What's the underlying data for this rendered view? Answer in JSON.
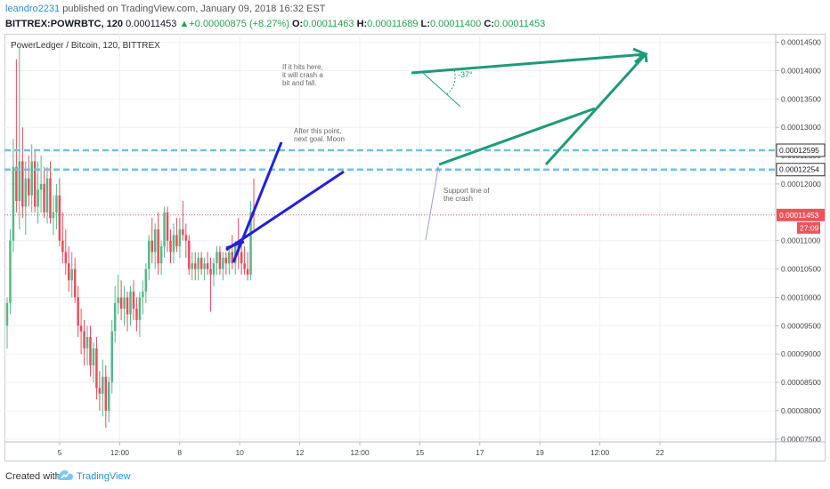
{
  "header": {
    "author": "leandro2231",
    "published_text": " published on TradingView.com, January 09, 2018 16:32 EST",
    "symbol": "BITTREX:POWRBTC, 120",
    "last": "0.00011453",
    "change_arrow": "▲",
    "change": "+0.00000875 (+8.27%)",
    "open_label": "O:",
    "open": "0.00011463",
    "high_label": "H:",
    "high": "0.00011689",
    "low_label": "L:",
    "low": "0.00011400",
    "close_label": "C:",
    "close": "0.00011453"
  },
  "footer": {
    "created_with": "Created with",
    "brand": "TradingView"
  },
  "chart_data": {
    "type": "candlestick",
    "title": "PowerLedger / Bitcoin, 120, BITTREX",
    "y_ticks": [
      "0.00014500",
      "0.00014000",
      "0.00013500",
      "0.00013000",
      "0.00012500",
      "0.00012000",
      "0.00011500",
      "0.00011000",
      "0.00010500",
      "0.00010000",
      "0.00009500",
      "0.00009000",
      "0.00008500",
      "0.00008000",
      "0.00007500"
    ],
    "ylim": [
      7.45e-05,
      0.0001465
    ],
    "x_ticks": [
      "5",
      "12:00",
      "8",
      "10",
      "12",
      "12:00",
      "15",
      "17",
      "19",
      "12:00",
      "22"
    ],
    "grid": true,
    "price_markers": [
      {
        "label": "0.00012595",
        "value": 0.00012595,
        "color": "#6cc4de",
        "dashed": true
      },
      {
        "label": "0.00012254",
        "value": 0.00012254,
        "color": "#6cc4de",
        "dashed": true
      },
      {
        "label": "0.00011453",
        "value": 0.00011453,
        "color": "#e8555a",
        "dashed": false,
        "countdown": "27:09"
      }
    ],
    "annotations": [
      {
        "text": "If it hits here, it will crash a bit and fall."
      },
      {
        "text": "After this point, next goal. Moon"
      },
      {
        "text": "Support line of the crash"
      },
      {
        "text": "-37°"
      }
    ],
    "colors": {
      "up": "#53b987",
      "down": "#eb4d5c",
      "trend_blue": "#2020d8",
      "trend_green": "#1e9a7a"
    },
    "candles": [
      {
        "o": 9.5e-05,
        "h": 0.0001,
        "l": 9.1e-05,
        "c": 9.9e-05
      },
      {
        "o": 9.9e-05,
        "h": 0.000112,
        "l": 9.7e-05,
        "c": 0.00011
      },
      {
        "o": 0.00011,
        "h": 0.000128,
        "l": 0.000108,
        "c": 0.000123
      },
      {
        "o": 0.000123,
        "h": 0.000142,
        "l": 0.000115,
        "c": 0.000117
      },
      {
        "o": 0.000117,
        "h": 0.000144,
        "l": 0.000112,
        "c": 0.000124
      },
      {
        "o": 0.000124,
        "h": 0.00013,
        "l": 0.000114,
        "c": 0.000116
      },
      {
        "o": 0.000116,
        "h": 0.000124,
        "l": 0.000111,
        "c": 0.000121
      },
      {
        "o": 0.000121,
        "h": 0.000125,
        "l": 0.000116,
        "c": 0.000118
      },
      {
        "o": 0.000118,
        "h": 0.000127,
        "l": 0.000115,
        "c": 0.000124
      },
      {
        "o": 0.000124,
        "h": 0.000126,
        "l": 0.000115,
        "c": 0.000116
      },
      {
        "o": 0.000116,
        "h": 0.000124,
        "l": 0.000113,
        "c": 0.000119
      },
      {
        "o": 0.000119,
        "h": 0.000125,
        "l": 0.000115,
        "c": 0.00012
      },
      {
        "o": 0.00012,
        "h": 0.000123,
        "l": 0.000114,
        "c": 0.000115
      },
      {
        "o": 0.000115,
        "h": 0.000123,
        "l": 0.000113,
        "c": 0.000121
      },
      {
        "o": 0.000121,
        "h": 0.000124,
        "l": 0.000113,
        "c": 0.000114
      },
      {
        "o": 0.000114,
        "h": 0.000118,
        "l": 0.000111,
        "c": 0.000115
      },
      {
        "o": 0.000115,
        "h": 0.00012,
        "l": 0.000112,
        "c": 0.000118
      },
      {
        "o": 0.000118,
        "h": 0.000121,
        "l": 0.000109,
        "c": 0.00011
      },
      {
        "o": 0.00011,
        "h": 0.000115,
        "l": 0.000106,
        "c": 0.000108
      },
      {
        "o": 0.000108,
        "h": 0.000112,
        "l": 0.000104,
        "c": 0.000106
      },
      {
        "o": 0.000106,
        "h": 0.000109,
        "l": 0.000101,
        "c": 0.000103
      },
      {
        "o": 0.000103,
        "h": 0.000108,
        "l": 0.0001,
        "c": 0.000105
      },
      {
        "o": 0.000105,
        "h": 0.000107,
        "l": 9.9e-05,
        "c": 0.0001
      },
      {
        "o": 0.0001,
        "h": 0.000102,
        "l": 9.3e-05,
        "c": 9.5e-05
      },
      {
        "o": 9.5e-05,
        "h": 9.8e-05,
        "l": 9e-05,
        "c": 9.4e-05
      },
      {
        "o": 9.4e-05,
        "h": 9.6e-05,
        "l": 8.8e-05,
        "c": 9.1e-05
      },
      {
        "o": 9.1e-05,
        "h": 9.5e-05,
        "l": 8.8e-05,
        "c": 9.3e-05
      },
      {
        "o": 9.3e-05,
        "h": 9.5e-05,
        "l": 8.6e-05,
        "c": 8.8e-05
      },
      {
        "o": 8.8e-05,
        "h": 9.2e-05,
        "l": 8.5e-05,
        "c": 9.1e-05
      },
      {
        "o": 9.1e-05,
        "h": 9.3e-05,
        "l": 8.2e-05,
        "c": 8.4e-05
      },
      {
        "o": 8.4e-05,
        "h": 8.7e-05,
        "l": 8e-05,
        "c": 8.3e-05
      },
      {
        "o": 8.3e-05,
        "h": 8.9e-05,
        "l": 7.9e-05,
        "c": 8.6e-05
      },
      {
        "o": 8.6e-05,
        "h": 8.8e-05,
        "l": 7.7e-05,
        "c": 8e-05
      },
      {
        "o": 8e-05,
        "h": 8.6e-05,
        "l": 7.8e-05,
        "c": 8.5e-05
      },
      {
        "o": 8.5e-05,
        "h": 9.6e-05,
        "l": 8.3e-05,
        "c": 9.4e-05
      },
      {
        "o": 9.4e-05,
        "h": 0.000102,
        "l": 9.2e-05,
        "c": 9.9e-05
      },
      {
        "o": 9.9e-05,
        "h": 0.000104,
        "l": 9.7e-05,
        "c": 0.0001
      },
      {
        "o": 0.0001,
        "h": 0.000103,
        "l": 9.6e-05,
        "c": 9.8e-05
      },
      {
        "o": 9.8e-05,
        "h": 0.000102,
        "l": 9.5e-05,
        "c": 0.0001
      },
      {
        "o": 0.0001,
        "h": 0.000101,
        "l": 9.4e-05,
        "c": 9.7e-05
      },
      {
        "o": 9.7e-05,
        "h": 0.000102,
        "l": 9.5e-05,
        "c": 0.000101
      },
      {
        "o": 0.000101,
        "h": 0.000103,
        "l": 9.6e-05,
        "c": 9.8e-05
      },
      {
        "o": 9.8e-05,
        "h": 0.0001,
        "l": 9.4e-05,
        "c": 9.6e-05
      },
      {
        "o": 9.6e-05,
        "h": 0.000101,
        "l": 9.3e-05,
        "c": 0.0001
      },
      {
        "o": 0.0001,
        "h": 0.000103,
        "l": 9.7e-05,
        "c": 0.000101
      },
      {
        "o": 0.000101,
        "h": 0.000106,
        "l": 9.9e-05,
        "c": 0.000105
      },
      {
        "o": 0.000105,
        "h": 0.000111,
        "l": 0.000103,
        "c": 0.00011
      },
      {
        "o": 0.00011,
        "h": 0.000114,
        "l": 0.000106,
        "c": 0.000108
      },
      {
        "o": 0.000108,
        "h": 0.000113,
        "l": 0.000105,
        "c": 0.000112
      },
      {
        "o": 0.000112,
        "h": 0.000115,
        "l": 0.000104,
        "c": 0.000106
      },
      {
        "o": 0.000106,
        "h": 0.00011,
        "l": 0.000104,
        "c": 0.000109
      },
      {
        "o": 0.000109,
        "h": 0.000116,
        "l": 0.000107,
        "c": 0.000115
      },
      {
        "o": 0.000115,
        "h": 0.000116,
        "l": 0.000108,
        "c": 0.00011
      },
      {
        "o": 0.00011,
        "h": 0.000112,
        "l": 0.000106,
        "c": 0.000108
      },
      {
        "o": 0.000108,
        "h": 0.000113,
        "l": 0.000106,
        "c": 0.000111
      },
      {
        "o": 0.000111,
        "h": 0.000114,
        "l": 0.000108,
        "c": 0.000109
      },
      {
        "o": 0.000109,
        "h": 0.000114,
        "l": 0.000107,
        "c": 0.000112
      },
      {
        "o": 0.000112,
        "h": 0.000117,
        "l": 0.00011,
        "c": 0.000111
      },
      {
        "o": 0.000111,
        "h": 0.000113,
        "l": 0.000107,
        "c": 0.00011
      },
      {
        "o": 0.00011,
        "h": 0.000111,
        "l": 0.000104,
        "c": 0.000105
      },
      {
        "o": 0.000105,
        "h": 0.000108,
        "l": 0.000103,
        "c": 0.000106
      },
      {
        "o": 0.000106,
        "h": 0.000108,
        "l": 0.000103,
        "c": 0.000105
      },
      {
        "o": 0.000105,
        "h": 0.000108,
        "l": 0.000103,
        "c": 0.000107
      },
      {
        "o": 0.000107,
        "h": 0.000108,
        "l": 0.000104,
        "c": 0.000105
      },
      {
        "o": 0.000105,
        "h": 0.000107,
        "l": 0.000103,
        "c": 0.000106
      },
      {
        "o": 0.000106,
        "h": 0.000108,
        "l": 0.000104,
        "c": 0.000105
      },
      {
        "o": 0.000105,
        "h": 0.000107,
        "l": 9.75e-05,
        "c": 0.000104
      },
      {
        "o": 0.000104,
        "h": 0.000107,
        "l": 0.000102,
        "c": 0.000106
      },
      {
        "o": 0.000106,
        "h": 0.000109,
        "l": 0.000104,
        "c": 0.000108
      },
      {
        "o": 0.000108,
        "h": 0.000109,
        "l": 0.000104,
        "c": 0.000105
      },
      {
        "o": 0.000105,
        "h": 0.000108,
        "l": 0.000103,
        "c": 0.000107
      },
      {
        "o": 0.000107,
        "h": 0.000108,
        "l": 0.000104,
        "c": 0.000106
      },
      {
        "o": 0.000106,
        "h": 0.000109,
        "l": 0.000104,
        "c": 0.000108
      },
      {
        "o": 0.000108,
        "h": 0.000111,
        "l": 0.000105,
        "c": 0.000106
      },
      {
        "o": 0.000106,
        "h": 0.00011,
        "l": 0.000104,
        "c": 0.000109
      },
      {
        "o": 0.000109,
        "h": 0.000114,
        "l": 0.000105,
        "c": 0.000108
      },
      {
        "o": 0.000108,
        "h": 0.00011,
        "l": 0.000104,
        "c": 0.000106
      },
      {
        "o": 0.000106,
        "h": 0.000109,
        "l": 0.000104,
        "c": 0.000105
      },
      {
        "o": 0.000105,
        "h": 0.000108,
        "l": 0.000103,
        "c": 0.000104
      },
      {
        "o": 0.000104,
        "h": 0.000117,
        "l": 0.000103,
        "c": 0.000115
      },
      {
        "o": 0.000115,
        "h": 0.000121,
        "l": 0.000112,
        "c": 0.0001145
      }
    ]
  }
}
